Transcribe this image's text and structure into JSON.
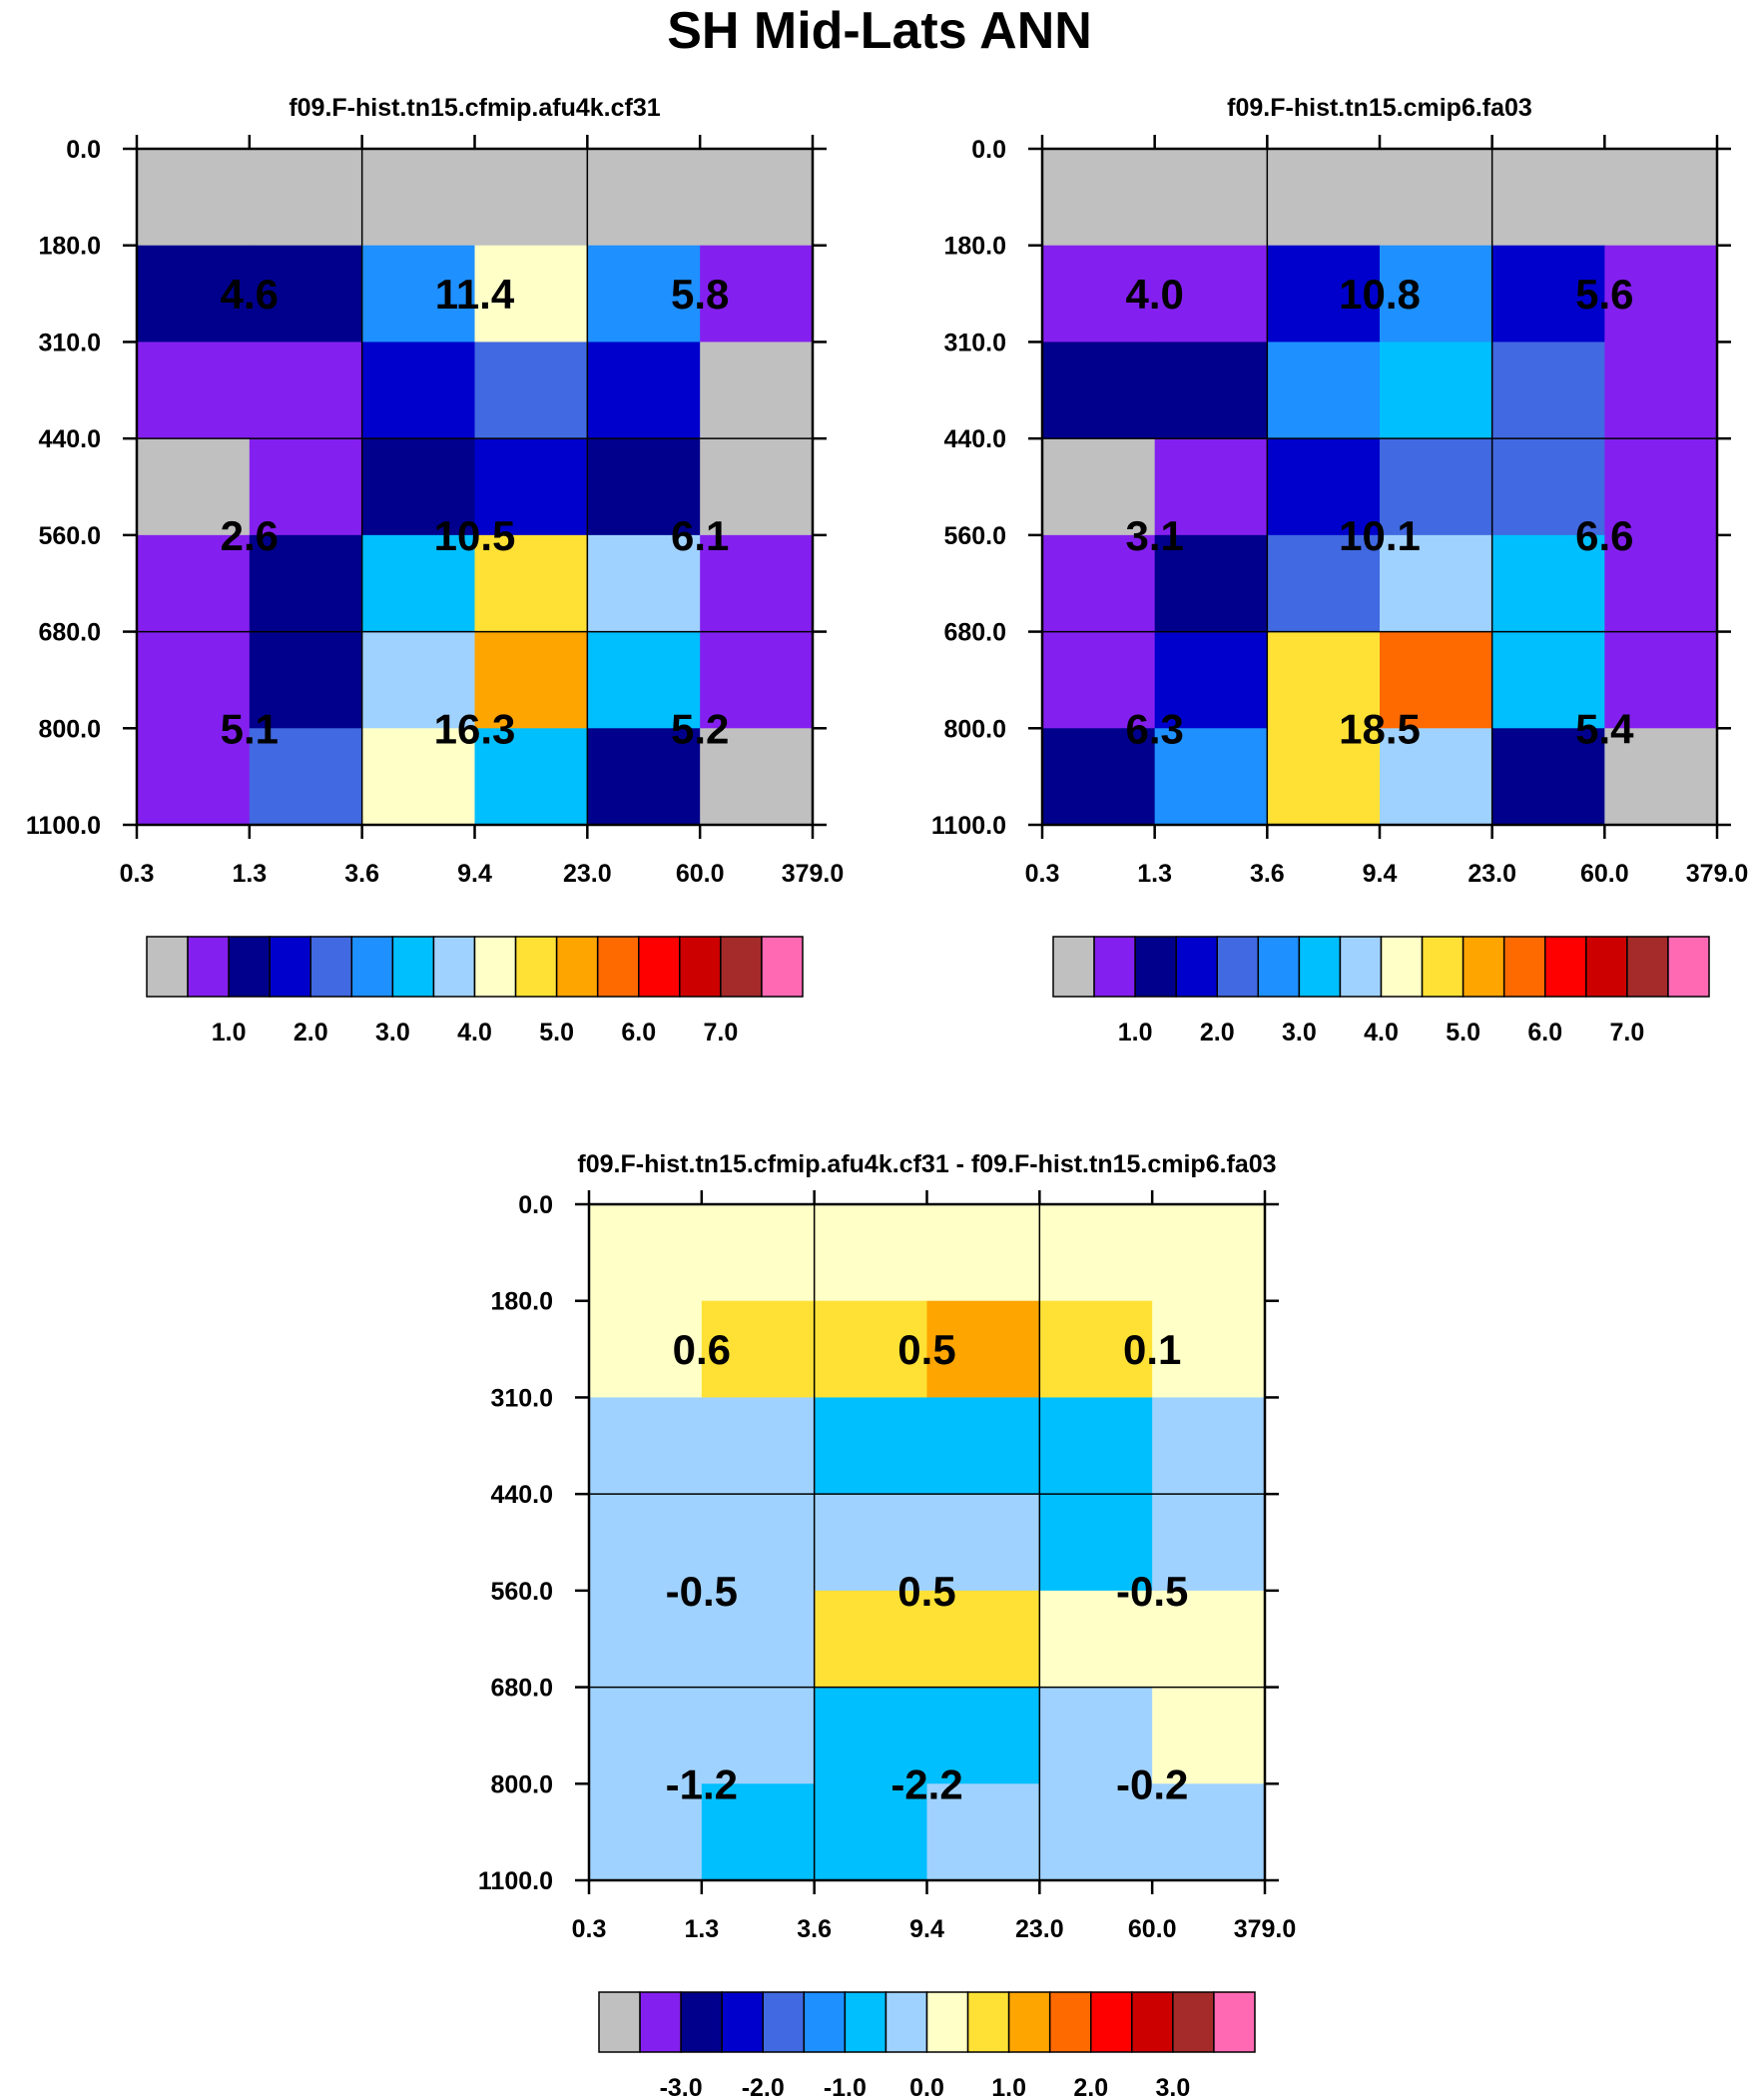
{
  "page_title": "SH Mid-Lats ANN",
  "colors": {
    "grey": "#C0C0C0",
    "violet": "#8420EF",
    "navy": "#00008C",
    "medium-blue": "#0000CD",
    "royal-blue": "#4169E1",
    "dodger-blue": "#1E90FF",
    "deep-sky-blue": "#00BFFF",
    "light-sky-blue": "#A0D2FF",
    "light-yellow": "#FFFFC8",
    "gold": "#FFE135",
    "orange": "#FFA500",
    "dark-orange": "#FF6A00",
    "red": "#FF0000",
    "dark-red": "#CD0000",
    "brown": "#A52A2A",
    "hot-pink": "#FF69B4"
  },
  "palette": [
    "grey",
    "violet",
    "navy",
    "medium-blue",
    "royal-blue",
    "dodger-blue",
    "deep-sky-blue",
    "light-sky-blue",
    "light-yellow",
    "gold",
    "orange",
    "dark-orange",
    "red",
    "dark-red",
    "brown",
    "hot-pink"
  ],
  "chart_data": [
    {
      "type": "heatmap",
      "title": "f09.F-hist.tn15.cfmip.afu4k.cf31",
      "x_tick_labels": [
        "0.3",
        "1.3",
        "3.6",
        "9.4",
        "23.0",
        "60.0",
        "379.0"
      ],
      "y_tick_labels": [
        "0.0",
        "180.0",
        "310.0",
        "440.0",
        "560.0",
        "680.0",
        "800.0",
        "1100.0"
      ],
      "cells": [
        [
          "grey",
          "grey",
          "grey",
          "grey",
          "grey",
          "grey"
        ],
        [
          "navy",
          "navy",
          "dodger-blue",
          "light-yellow",
          "dodger-blue",
          "violet"
        ],
        [
          "violet",
          "violet",
          "medium-blue",
          "royal-blue",
          "medium-blue",
          "grey"
        ],
        [
          "grey",
          "violet",
          "navy",
          "medium-blue",
          "navy",
          "grey"
        ],
        [
          "violet",
          "navy",
          "deep-sky-blue",
          "gold",
          "light-sky-blue",
          "violet"
        ],
        [
          "violet",
          "navy",
          "light-sky-blue",
          "orange",
          "deep-sky-blue",
          "violet"
        ],
        [
          "violet",
          "royal-blue",
          "light-yellow",
          "deep-sky-blue",
          "navy",
          "grey"
        ]
      ],
      "labels": [
        [
          "4.6",
          "11.4",
          "5.8"
        ],
        [
          "2.6",
          "10.5",
          "6.1"
        ],
        [
          "5.1",
          "16.3",
          "5.2"
        ]
      ],
      "colorbar": {
        "colors": [
          "grey",
          "violet",
          "navy",
          "medium-blue",
          "royal-blue",
          "dodger-blue",
          "deep-sky-blue",
          "light-sky-blue",
          "light-yellow",
          "gold",
          "orange",
          "dark-orange",
          "red",
          "dark-red",
          "brown",
          "hot-pink"
        ],
        "tick_labels": [
          "1.0",
          "2.0",
          "3.0",
          "4.0",
          "5.0",
          "6.0",
          "7.0"
        ]
      }
    },
    {
      "type": "heatmap",
      "title": "f09.F-hist.tn15.cmip6.fa03",
      "x_tick_labels": [
        "0.3",
        "1.3",
        "3.6",
        "9.4",
        "23.0",
        "60.0",
        "379.0"
      ],
      "y_tick_labels": [
        "0.0",
        "180.0",
        "310.0",
        "440.0",
        "560.0",
        "680.0",
        "800.0",
        "1100.0"
      ],
      "cells": [
        [
          "grey",
          "grey",
          "grey",
          "grey",
          "grey",
          "grey"
        ],
        [
          "violet",
          "violet",
          "medium-blue",
          "dodger-blue",
          "medium-blue",
          "violet"
        ],
        [
          "navy",
          "navy",
          "dodger-blue",
          "deep-sky-blue",
          "royal-blue",
          "violet"
        ],
        [
          "grey",
          "violet",
          "medium-blue",
          "royal-blue",
          "royal-blue",
          "violet"
        ],
        [
          "violet",
          "navy",
          "royal-blue",
          "light-sky-blue",
          "deep-sky-blue",
          "violet"
        ],
        [
          "violet",
          "medium-blue",
          "gold",
          "dark-orange",
          "deep-sky-blue",
          "violet"
        ],
        [
          "navy",
          "dodger-blue",
          "gold",
          "light-sky-blue",
          "navy",
          "grey"
        ]
      ],
      "labels": [
        [
          "4.0",
          "10.8",
          "5.6"
        ],
        [
          "3.1",
          "10.1",
          "6.6"
        ],
        [
          "6.3",
          "18.5",
          "5.4"
        ]
      ],
      "colorbar": {
        "colors": [
          "grey",
          "violet",
          "navy",
          "medium-blue",
          "royal-blue",
          "dodger-blue",
          "deep-sky-blue",
          "light-sky-blue",
          "light-yellow",
          "gold",
          "orange",
          "dark-orange",
          "red",
          "dark-red",
          "brown",
          "hot-pink"
        ],
        "tick_labels": [
          "1.0",
          "2.0",
          "3.0",
          "4.0",
          "5.0",
          "6.0",
          "7.0"
        ]
      }
    },
    {
      "type": "heatmap",
      "title": "f09.F-hist.tn15.cfmip.afu4k.cf31 - f09.F-hist.tn15.cmip6.fa03",
      "x_tick_labels": [
        "0.3",
        "1.3",
        "3.6",
        "9.4",
        "23.0",
        "60.0",
        "379.0"
      ],
      "y_tick_labels": [
        "0.0",
        "180.0",
        "310.0",
        "440.0",
        "560.0",
        "680.0",
        "800.0",
        "1100.0"
      ],
      "cells": [
        [
          "light-yellow",
          "light-yellow",
          "light-yellow",
          "light-yellow",
          "light-yellow",
          "light-yellow"
        ],
        [
          "light-yellow",
          "gold",
          "gold",
          "orange",
          "gold",
          "light-yellow"
        ],
        [
          "light-sky-blue",
          "light-sky-blue",
          "deep-sky-blue",
          "deep-sky-blue",
          "deep-sky-blue",
          "light-sky-blue"
        ],
        [
          "light-sky-blue",
          "light-sky-blue",
          "light-sky-blue",
          "light-sky-blue",
          "deep-sky-blue",
          "light-sky-blue"
        ],
        [
          "light-sky-blue",
          "light-sky-blue",
          "gold",
          "gold",
          "light-yellow",
          "light-yellow"
        ],
        [
          "light-sky-blue",
          "light-sky-blue",
          "deep-sky-blue",
          "deep-sky-blue",
          "light-sky-blue",
          "light-yellow"
        ],
        [
          "light-sky-blue",
          "deep-sky-blue",
          "deep-sky-blue",
          "light-sky-blue",
          "light-sky-blue",
          "light-sky-blue"
        ]
      ],
      "labels": [
        [
          "0.6",
          "0.5",
          "0.1"
        ],
        [
          "-0.5",
          "0.5",
          "-0.5"
        ],
        [
          "-1.2",
          "-2.2",
          "-0.2"
        ]
      ],
      "colorbar": {
        "colors": [
          "grey",
          "violet",
          "navy",
          "medium-blue",
          "royal-blue",
          "dodger-blue",
          "deep-sky-blue",
          "light-sky-blue",
          "light-yellow",
          "gold",
          "orange",
          "dark-orange",
          "red",
          "dark-red",
          "brown",
          "hot-pink"
        ],
        "tick_labels": [
          "-3.0",
          "-2.0",
          "-1.0",
          "0.0",
          "1.0",
          "2.0",
          "3.0"
        ]
      }
    }
  ]
}
